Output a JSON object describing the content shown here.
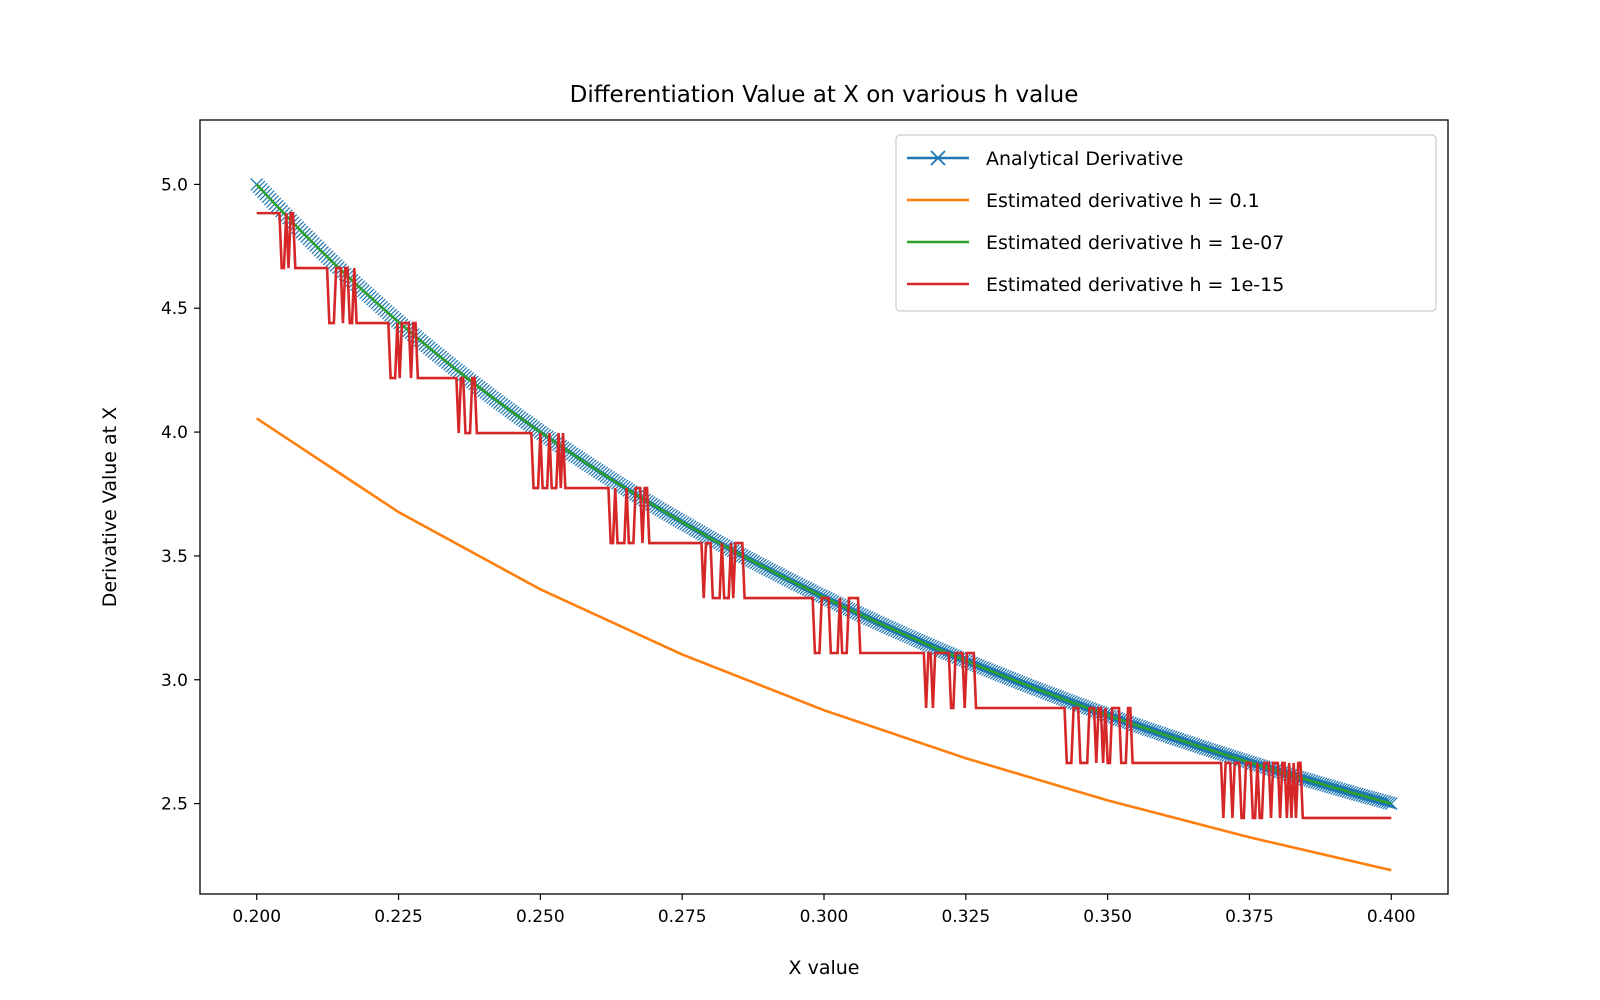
{
  "chart_data": {
    "type": "line",
    "title": "Differentiation Value at X on various h value",
    "xlabel": "X value",
    "ylabel": "Derivative Value at X",
    "xlim": [
      0.19,
      0.41
    ],
    "ylim": [
      2.135,
      5.26
    ],
    "xticks": [
      0.2,
      0.225,
      0.25,
      0.275,
      0.3,
      0.325,
      0.35,
      0.375,
      0.4
    ],
    "xtick_labels": [
      "0.200",
      "0.225",
      "0.250",
      "0.275",
      "0.300",
      "0.325",
      "0.350",
      "0.375",
      "0.400"
    ],
    "yticks": [
      2.5,
      3.0,
      3.5,
      4.0,
      4.5,
      5.0
    ],
    "ytick_labels": [
      "2.5",
      "3.0",
      "3.5",
      "4.0",
      "4.5",
      "5.0"
    ],
    "grid": false,
    "legend_position": "top-right",
    "x_range": [
      0.2,
      0.4
    ],
    "series": [
      {
        "name": "Analytical Derivative",
        "color": "#1f77b4",
        "marker": "x",
        "description_function": "1/x",
        "x": [
          0.2,
          0.225,
          0.25,
          0.275,
          0.3,
          0.325,
          0.35,
          0.375,
          0.4
        ],
        "values": [
          5.0,
          4.444,
          4.0,
          3.636,
          3.333,
          3.077,
          2.857,
          2.667,
          2.5
        ]
      },
      {
        "name": "Estimated derivative h = 0.1",
        "color": "#ff7f0e",
        "marker": "none",
        "x": [
          0.2,
          0.225,
          0.25,
          0.275,
          0.3,
          0.325,
          0.35,
          0.375,
          0.4
        ],
        "values": [
          4.055,
          3.677,
          3.365,
          3.102,
          2.877,
          2.683,
          2.513,
          2.364,
          2.231
        ]
      },
      {
        "name": "Estimated derivative h = 1e-07",
        "color": "#2ca02c",
        "marker": "none",
        "x": [
          0.2,
          0.225,
          0.25,
          0.275,
          0.3,
          0.325,
          0.35,
          0.375,
          0.4
        ],
        "values": [
          5.0,
          4.444,
          4.0,
          3.636,
          3.333,
          3.077,
          2.857,
          2.667,
          2.5
        ]
      },
      {
        "name": "Estimated derivative h = 1e-15",
        "color": "#d62728",
        "marker": "none",
        "quantization_step": 0.222,
        "x": [
          0.2,
          0.225,
          0.25,
          0.275,
          0.3,
          0.325,
          0.35,
          0.375,
          0.4
        ],
        "values": [
          4.885,
          4.441,
          3.997,
          3.553,
          3.331,
          3.109,
          2.887,
          2.665,
          2.443
        ]
      }
    ]
  }
}
